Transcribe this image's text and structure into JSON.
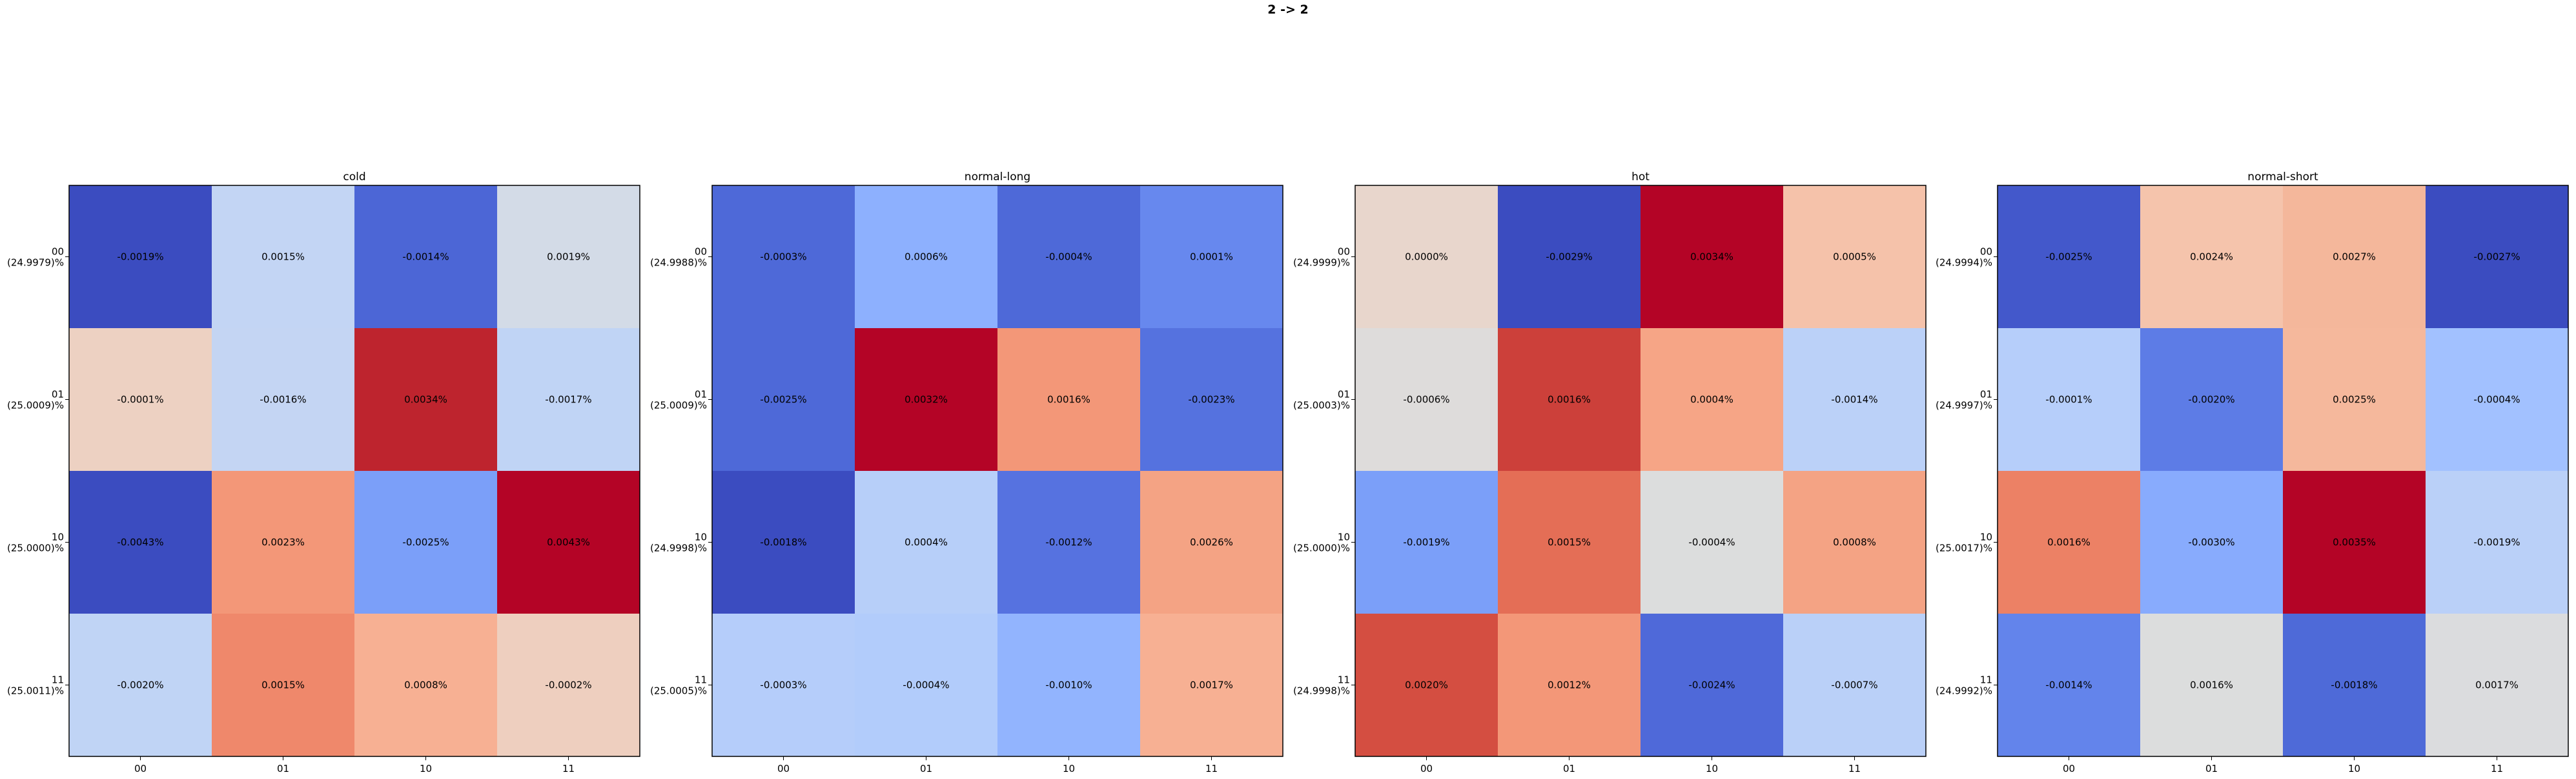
{
  "suptitle": "2 -> 2",
  "chart_data": [
    {
      "type": "heatmap",
      "title": "cold",
      "x_tick_labels": [
        "00",
        "01",
        "10",
        "11"
      ],
      "y_tick_labels": [
        "00\n(24.9979)%",
        "01\n(25.0009)%",
        "10\n(25.0000)%",
        "11\n(25.0011)%"
      ],
      "values": [
        [
          -0.0019,
          0.0015,
          -0.0014,
          0.0019
        ],
        [
          -0.0001,
          -0.0016,
          0.0034,
          -0.0017
        ],
        [
          -0.0043,
          0.0023,
          -0.0025,
          0.0043
        ],
        [
          -0.002,
          0.0015,
          0.0008,
          -0.0002
        ]
      ],
      "cell_labels": [
        [
          "-0.0019%",
          "0.0015%",
          "-0.0014%",
          "0.0019%"
        ],
        [
          "-0.0001%",
          "-0.0016%",
          "0.0034%",
          "-0.0017%"
        ],
        [
          "-0.0043%",
          "0.0023%",
          "-0.0025%",
          "0.0043%"
        ],
        [
          "-0.0020%",
          "0.0015%",
          "0.0008%",
          "-0.0002%"
        ]
      ],
      "cell_colors": [
        [
          "#3b4cc0",
          "#c3d5f4",
          "#4c66d6",
          "#d3dbe7"
        ],
        [
          "#edd1c2",
          "#c4d5f3",
          "#be242e",
          "#c0d4f5"
        ],
        [
          "#3b4cc0",
          "#f39778",
          "#7b9ff9",
          "#b40426"
        ],
        [
          "#c0d4f5",
          "#ef886b",
          "#f7b093",
          "#eecfbf"
        ]
      ]
    },
    {
      "type": "heatmap",
      "title": "normal-long",
      "x_tick_labels": [
        "00",
        "01",
        "10",
        "11"
      ],
      "y_tick_labels": [
        "00\n(24.9988)%",
        "01\n(25.0009)%",
        "10\n(24.9998)%",
        "11\n(25.0005)%"
      ],
      "values": [
        [
          -0.0003,
          0.0006,
          -0.0004,
          0.0001
        ],
        [
          -0.0025,
          0.0032,
          0.0016,
          -0.0023
        ],
        [
          -0.0018,
          0.0004,
          -0.0012,
          0.0026
        ],
        [
          -0.0003,
          -0.0004,
          -0.001,
          0.0017
        ]
      ],
      "cell_labels": [
        [
          "-0.0003%",
          "0.0006%",
          "-0.0004%",
          "0.0001%"
        ],
        [
          "-0.0025%",
          "0.0032%",
          "0.0016%",
          "-0.0023%"
        ],
        [
          "-0.0018%",
          "0.0004%",
          "-0.0012%",
          "0.0026%"
        ],
        [
          "-0.0003%",
          "-0.0004%",
          "-0.0010%",
          "0.0017%"
        ]
      ],
      "cell_colors": [
        [
          "#4e69d8",
          "#8db0fe",
          "#4e69d8",
          "#6788ee"
        ],
        [
          "#4e69d8",
          "#b40426",
          "#f39778",
          "#5572df"
        ],
        [
          "#3b4cc0",
          "#b7cff9",
          "#5672e0",
          "#f4a384"
        ],
        [
          "#b5cdfa",
          "#b2ccfb",
          "#92b4fe",
          "#f7b093"
        ]
      ]
    },
    {
      "type": "heatmap",
      "title": "hot",
      "x_tick_labels": [
        "00",
        "01",
        "10",
        "11"
      ],
      "y_tick_labels": [
        "00\n(24.9999)%",
        "01\n(25.0003)%",
        "10\n(25.0000)%",
        "11\n(24.9998)%"
      ],
      "values": [
        [
          0.0,
          -0.0029,
          0.0034,
          0.0005
        ],
        [
          -0.0006,
          0.0016,
          0.0004,
          -0.0014
        ],
        [
          -0.0019,
          0.0015,
          -0.0004,
          0.0008
        ],
        [
          0.002,
          0.0012,
          -0.0024,
          -0.0007
        ]
      ],
      "cell_labels": [
        [
          "0.0000%",
          "-0.0029%",
          "0.0034%",
          "0.0005%"
        ],
        [
          "-0.0006%",
          "0.0016%",
          "0.0004%",
          "-0.0014%"
        ],
        [
          "-0.0019%",
          "0.0015%",
          "-0.0004%",
          "0.0008%"
        ],
        [
          "0.0020%",
          "0.0012%",
          "-0.0024%",
          "-0.0007%"
        ]
      ],
      "cell_colors": [
        [
          "#e8d6cc",
          "#3b4cc0",
          "#b40426",
          "#f5c2aa"
        ],
        [
          "#dedcdb",
          "#cc403a",
          "#f6a586",
          "#bbd1f8"
        ],
        [
          "#7b9ff9",
          "#e46e56",
          "#dcdddd",
          "#f4a384"
        ],
        [
          "#d44e41",
          "#f39778",
          "#4f69d9",
          "#bad0f8"
        ]
      ]
    },
    {
      "type": "heatmap",
      "title": "normal-short",
      "x_tick_labels": [
        "00",
        "01",
        "10",
        "11"
      ],
      "y_tick_labels": [
        "00\n(24.9994)%",
        "01\n(24.9997)%",
        "10\n(25.0017)%",
        "11\n(24.9992)%"
      ],
      "values": [
        [
          -0.0025,
          0.0024,
          0.0027,
          -0.0027
        ],
        [
          -0.0001,
          -0.002,
          0.0025,
          -0.0004
        ],
        [
          0.0016,
          -0.003,
          0.0035,
          -0.0019
        ],
        [
          -0.0014,
          0.0016,
          -0.0018,
          0.0017
        ]
      ],
      "cell_labels": [
        [
          "-0.0025%",
          "0.0024%",
          "0.0027%",
          "-0.0027%"
        ],
        [
          "-0.0001%",
          "-0.0020%",
          "0.0025%",
          "-0.0004%"
        ],
        [
          "0.0016%",
          "-0.0030%",
          "0.0035%",
          "-0.0019%"
        ],
        [
          "-0.0014%",
          "0.0016%",
          "-0.0018%",
          "0.0017%"
        ]
      ],
      "cell_colors": [
        [
          "#4358cb",
          "#f5c4ac",
          "#f4b79b",
          "#3b4cc0"
        ],
        [
          "#b6cefa",
          "#5d7ce6",
          "#f5b89c",
          "#a2c1ff"
        ],
        [
          "#ec8165",
          "#88abfd",
          "#b40426",
          "#bad0f8"
        ],
        [
          "#6384eb",
          "#dcdddd",
          "#4e6ad8",
          "#dbdcde"
        ]
      ]
    }
  ]
}
